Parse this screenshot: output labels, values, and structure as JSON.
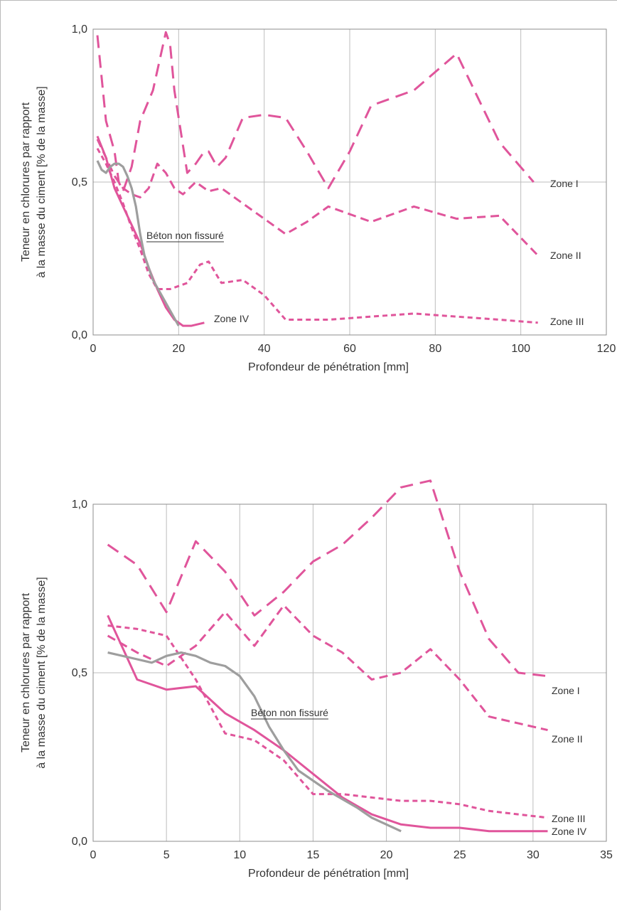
{
  "chart_data": [
    {
      "type": "line",
      "xlabel": "Profondeur de pénétration [mm]",
      "ylabel": [
        "Teneur en chlorures par rapport",
        "à la masse du ciment [% de la masse]"
      ],
      "xlim": [
        0,
        120
      ],
      "ylim": [
        0,
        1.0
      ],
      "xticks": [
        0,
        20,
        40,
        60,
        80,
        100,
        120
      ],
      "xtick_labels": [
        "0",
        "20",
        "40",
        "60",
        "80",
        "100",
        "120"
      ],
      "yticks": [
        0,
        0.5,
        1.0
      ],
      "ytick_labels": [
        "0,0",
        "0,5",
        "1,0"
      ],
      "grid": true,
      "series": [
        {
          "name": "Zone I",
          "color": "#e0559b",
          "style": "long-dash",
          "x": [
            1,
            3,
            5,
            6,
            7,
            9,
            11,
            14,
            17,
            18,
            19,
            22,
            24,
            26,
            27,
            29,
            31,
            35,
            40,
            45,
            50,
            55,
            60,
            65,
            75,
            85,
            95,
            103
          ],
          "y": [
            0.98,
            0.7,
            0.6,
            0.5,
            0.47,
            0.55,
            0.7,
            0.8,
            0.99,
            0.95,
            0.8,
            0.53,
            0.56,
            0.6,
            0.6,
            0.55,
            0.58,
            0.71,
            0.72,
            0.71,
            0.6,
            0.48,
            0.6,
            0.75,
            0.8,
            0.92,
            0.63,
            0.5
          ]
        },
        {
          "name": "Zone II",
          "color": "#e0559b",
          "style": "medium-dash",
          "x": [
            1,
            3,
            5,
            7,
            9,
            11,
            13,
            15,
            17,
            19,
            21,
            24,
            27,
            30,
            35,
            40,
            45,
            50,
            55,
            65,
            75,
            85,
            95,
            104
          ],
          "y": [
            0.64,
            0.58,
            0.52,
            0.48,
            0.46,
            0.45,
            0.48,
            0.56,
            0.53,
            0.48,
            0.46,
            0.5,
            0.47,
            0.48,
            0.43,
            0.38,
            0.33,
            0.37,
            0.42,
            0.37,
            0.42,
            0.38,
            0.39,
            0.26
          ]
        },
        {
          "name": "Zone III",
          "color": "#e0559b",
          "style": "short-dash",
          "x": [
            1,
            3,
            5,
            7,
            9,
            11,
            13,
            15,
            18,
            20,
            22,
            25,
            27,
            30,
            35,
            40,
            45,
            55,
            65,
            75,
            85,
            95,
            104
          ],
          "y": [
            0.61,
            0.56,
            0.5,
            0.43,
            0.35,
            0.28,
            0.2,
            0.15,
            0.15,
            0.16,
            0.17,
            0.23,
            0.24,
            0.17,
            0.18,
            0.13,
            0.05,
            0.05,
            0.06,
            0.07,
            0.06,
            0.05,
            0.04
          ]
        },
        {
          "name": "Zone IV",
          "color": "#e0559b",
          "style": "solid",
          "x": [
            1,
            3,
            5,
            7,
            9,
            11,
            13,
            15,
            17,
            19,
            21,
            23,
            26
          ],
          "y": [
            0.65,
            0.58,
            0.48,
            0.42,
            0.36,
            0.3,
            0.22,
            0.15,
            0.09,
            0.05,
            0.03,
            0.03,
            0.04
          ]
        },
        {
          "name": "Béton non fissuré",
          "color": "#9e9e9e",
          "style": "solid",
          "x": [
            1,
            2,
            3,
            4,
            5,
            6,
            7,
            8,
            9,
            10,
            11,
            12,
            14,
            16,
            18,
            20
          ],
          "y": [
            0.57,
            0.54,
            0.53,
            0.55,
            0.56,
            0.56,
            0.55,
            0.52,
            0.48,
            0.42,
            0.33,
            0.26,
            0.18,
            0.13,
            0.08,
            0.03
          ]
        }
      ]
    },
    {
      "type": "line",
      "xlabel": "Profondeur de pénétration [mm]",
      "ylabel": [
        "Teneur en chlorures par rapport",
        "à la masse du ciment [% de la masse]"
      ],
      "xlim": [
        0,
        35
      ],
      "ylim": [
        0,
        1.0
      ],
      "xticks": [
        0,
        5,
        10,
        15,
        20,
        25,
        30,
        35
      ],
      "xtick_labels": [
        "0",
        "5",
        "10",
        "15",
        "20",
        "25",
        "30",
        "35"
      ],
      "yticks": [
        0,
        0.5,
        1.0
      ],
      "ytick_labels": [
        "0,0",
        "0,5",
        "1,0"
      ],
      "grid": true,
      "series": [
        {
          "name": "Zone I",
          "color": "#e0559b",
          "style": "long-dash",
          "x": [
            1,
            3,
            5,
            7,
            9,
            11,
            13,
            15,
            17,
            19,
            21,
            23,
            25,
            27,
            29,
            31
          ],
          "y": [
            0.88,
            0.82,
            0.68,
            0.89,
            0.8,
            0.67,
            0.74,
            0.83,
            0.88,
            0.96,
            1.05,
            1.07,
            0.8,
            0.6,
            0.5,
            0.49
          ]
        },
        {
          "name": "Zone II",
          "color": "#e0559b",
          "style": "medium-dash",
          "x": [
            1,
            3,
            5,
            7,
            9,
            11,
            13,
            15,
            17,
            19,
            21,
            23,
            25,
            27,
            29,
            31
          ],
          "y": [
            0.61,
            0.56,
            0.52,
            0.58,
            0.68,
            0.58,
            0.7,
            0.61,
            0.56,
            0.48,
            0.5,
            0.57,
            0.48,
            0.37,
            0.35,
            0.33
          ]
        },
        {
          "name": "Zone III",
          "color": "#e0559b",
          "style": "short-dash",
          "x": [
            1,
            3,
            5,
            7,
            9,
            11,
            13,
            15,
            17,
            19,
            21,
            23,
            25,
            27,
            29,
            31
          ],
          "y": [
            0.64,
            0.63,
            0.61,
            0.48,
            0.32,
            0.3,
            0.24,
            0.14,
            0.14,
            0.13,
            0.12,
            0.12,
            0.11,
            0.09,
            0.08,
            0.07
          ]
        },
        {
          "name": "Zone IV",
          "color": "#e0559b",
          "style": "solid",
          "x": [
            1,
            3,
            5,
            7,
            9,
            11,
            13,
            15,
            17,
            19,
            21,
            23,
            25,
            27,
            29,
            31
          ],
          "y": [
            0.67,
            0.48,
            0.45,
            0.46,
            0.38,
            0.33,
            0.27,
            0.2,
            0.13,
            0.08,
            0.05,
            0.04,
            0.04,
            0.03,
            0.03,
            0.03
          ]
        },
        {
          "name": "Béton non fissuré",
          "color": "#9e9e9e",
          "style": "solid",
          "x": [
            1,
            3,
            4,
            5,
            6,
            7,
            8,
            9,
            10,
            11,
            12,
            13,
            14,
            16,
            18,
            19,
            21
          ],
          "y": [
            0.56,
            0.54,
            0.53,
            0.55,
            0.56,
            0.55,
            0.53,
            0.52,
            0.49,
            0.43,
            0.34,
            0.27,
            0.21,
            0.15,
            0.1,
            0.07,
            0.03
          ]
        }
      ]
    }
  ]
}
